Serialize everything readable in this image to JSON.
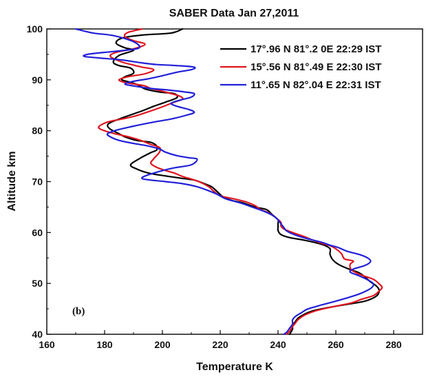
{
  "chart_data": {
    "type": "line",
    "title": "SABER Data  Jan 27,2011",
    "xlabel": "Temperature K",
    "ylabel": "Altitude km",
    "xlim": [
      160,
      290
    ],
    "ylim": [
      40,
      100
    ],
    "xticks": [
      160,
      180,
      200,
      220,
      240,
      260,
      280
    ],
    "yticks": [
      40,
      50,
      60,
      70,
      80,
      90,
      100
    ],
    "panel_label": "(b)",
    "legend_position": "top-right",
    "grid": false,
    "series": [
      {
        "name": "17°.96 N 81°.2 0E  22:29 IST",
        "color": "#000000",
        "points": [
          [
            207,
            100
          ],
          [
            203,
            99.2
          ],
          [
            193,
            98.8
          ],
          [
            186,
            98.2
          ],
          [
            184,
            97.2
          ],
          [
            187,
            96.3
          ],
          [
            190,
            95.8
          ],
          [
            185,
            94.8
          ],
          [
            183,
            93.5
          ],
          [
            185,
            92.8
          ],
          [
            189,
            92.3
          ],
          [
            190,
            91.3
          ],
          [
            187,
            90.6
          ],
          [
            186,
            90
          ],
          [
            189,
            89.5
          ],
          [
            192,
            88.9
          ],
          [
            194,
            88.2
          ],
          [
            199,
            87.6
          ],
          [
            204,
            87.3
          ],
          [
            205,
            86.5
          ],
          [
            201,
            85.6
          ],
          [
            197,
            84.8
          ],
          [
            193,
            83.9
          ],
          [
            186,
            82.5
          ],
          [
            182,
            81.6
          ],
          [
            181,
            81
          ],
          [
            182,
            80.3
          ],
          [
            185,
            79.4
          ],
          [
            187,
            78.8
          ],
          [
            191,
            78.1
          ],
          [
            196,
            77.7
          ],
          [
            198,
            77
          ],
          [
            198,
            76.2
          ],
          [
            196,
            75.7
          ],
          [
            192,
            74.5
          ],
          [
            189,
            73.3
          ],
          [
            191,
            72.5
          ],
          [
            195,
            71.7
          ],
          [
            200,
            71.2
          ],
          [
            206,
            70.7
          ],
          [
            211,
            70.3
          ],
          [
            214,
            69.7
          ],
          [
            217,
            69
          ],
          [
            219,
            68
          ],
          [
            221,
            67
          ],
          [
            224,
            66.3
          ],
          [
            228,
            65.8
          ],
          [
            232,
            65
          ],
          [
            236,
            64.5
          ],
          [
            238,
            63.5
          ],
          [
            240,
            62.5
          ],
          [
            240,
            61.8
          ],
          [
            240,
            61
          ],
          [
            240,
            60.4
          ],
          [
            241,
            59.6
          ],
          [
            244,
            59
          ],
          [
            249,
            58.5
          ],
          [
            253,
            58
          ],
          [
            256,
            57.5
          ],
          [
            258,
            56.8
          ],
          [
            258,
            55.7
          ],
          [
            259,
            54.6
          ],
          [
            261,
            53.7
          ],
          [
            265,
            52.7
          ],
          [
            268,
            52.1
          ],
          [
            270,
            51.3
          ],
          [
            272,
            50.3
          ],
          [
            274,
            49.5
          ],
          [
            275,
            48.6
          ],
          [
            274,
            47.5
          ],
          [
            270,
            46.5
          ],
          [
            263,
            45.8
          ],
          [
            257,
            45.2
          ],
          [
            252,
            44.6
          ],
          [
            249,
            43.9
          ],
          [
            247,
            43.2
          ],
          [
            246,
            42.5
          ],
          [
            245,
            41.7
          ],
          [
            245,
            41
          ],
          [
            244,
            40
          ]
        ]
      },
      {
        "name": "15°.56 N 81°.49 E 22:30 IST",
        "color": "#e0141e",
        "points": [
          [
            193,
            100
          ],
          [
            188,
            99.3
          ],
          [
            187,
            98.5
          ],
          [
            190,
            97.7
          ],
          [
            194,
            97
          ],
          [
            190,
            96.1
          ],
          [
            184,
            95.4
          ],
          [
            182,
            94.6
          ],
          [
            186,
            93.5
          ],
          [
            190,
            92.9
          ],
          [
            193,
            92.5
          ],
          [
            197,
            92
          ],
          [
            194,
            91.2
          ],
          [
            188,
            90.6
          ],
          [
            185,
            90
          ],
          [
            187,
            89.5
          ],
          [
            191,
            89.1
          ],
          [
            194,
            88.8
          ],
          [
            196,
            88.3
          ],
          [
            199,
            87.9
          ],
          [
            203,
            87.3
          ],
          [
            206,
            86.8
          ],
          [
            207,
            86.2
          ],
          [
            204,
            85.6
          ],
          [
            200,
            84.7
          ],
          [
            195,
            83.7
          ],
          [
            190,
            82.8
          ],
          [
            186,
            82.3
          ],
          [
            181,
            81.7
          ],
          [
            178,
            80.8
          ],
          [
            179,
            80.2
          ],
          [
            183,
            79.5
          ],
          [
            189,
            78.7
          ],
          [
            193,
            78
          ],
          [
            196,
            77.3
          ],
          [
            199,
            76.7
          ],
          [
            199,
            75.8
          ],
          [
            197,
            74.5
          ],
          [
            196,
            73.6
          ],
          [
            198,
            72.8
          ],
          [
            201,
            72.2
          ],
          [
            204,
            71.7
          ],
          [
            207,
            71
          ],
          [
            210,
            70.5
          ],
          [
            213,
            69.9
          ],
          [
            216,
            69
          ],
          [
            218,
            68
          ],
          [
            220,
            67.2
          ],
          [
            224,
            66.7
          ],
          [
            229,
            66
          ],
          [
            232,
            65.3
          ],
          [
            234,
            64.5
          ],
          [
            237,
            63.8
          ],
          [
            239,
            63
          ],
          [
            241,
            62
          ],
          [
            241,
            61.3
          ],
          [
            242,
            60.7
          ],
          [
            245,
            60
          ],
          [
            249,
            59.2
          ],
          [
            252,
            58.5
          ],
          [
            255,
            57.9
          ],
          [
            258,
            57.4
          ],
          [
            260,
            56.8
          ],
          [
            262,
            55.8
          ],
          [
            263,
            54.8
          ],
          [
            266,
            54.4
          ],
          [
            265,
            53.8
          ],
          [
            265,
            53
          ],
          [
            266,
            52.4
          ],
          [
            269,
            51.6
          ],
          [
            273,
            50.8
          ],
          [
            275,
            49.9
          ],
          [
            276,
            49.2
          ],
          [
            275,
            48.5
          ],
          [
            273,
            47.6
          ],
          [
            269,
            46.9
          ],
          [
            265,
            46.1
          ],
          [
            258,
            45.3
          ],
          [
            253,
            44.6
          ],
          [
            249,
            43.7
          ],
          [
            247,
            42.9
          ],
          [
            246,
            42.2
          ],
          [
            245,
            41.5
          ],
          [
            244,
            40.6
          ],
          [
            243,
            40
          ]
        ]
      },
      {
        "name": "11°.65 N 82°.04 E 22:31 IST",
        "color": "#2020d8",
        "points": [
          [
            170,
            100
          ],
          [
            176,
            99.2
          ],
          [
            183,
            98.7
          ],
          [
            190,
            97.5
          ],
          [
            192,
            96.3
          ],
          [
            187,
            95.8
          ],
          [
            180,
            95.4
          ],
          [
            174,
            95
          ],
          [
            173,
            94.6
          ],
          [
            178,
            94.3
          ],
          [
            186,
            93.9
          ],
          [
            192,
            93.4
          ],
          [
            198,
            93
          ],
          [
            205,
            92.8
          ],
          [
            211,
            92.5
          ],
          [
            210,
            92
          ],
          [
            205,
            91.5
          ],
          [
            200,
            90.8
          ],
          [
            195,
            90.2
          ],
          [
            190,
            89.7
          ],
          [
            187,
            89.2
          ],
          [
            190,
            88.8
          ],
          [
            196,
            88.3
          ],
          [
            202,
            88
          ],
          [
            208,
            87.6
          ],
          [
            211,
            87.3
          ],
          [
            210,
            86.6
          ],
          [
            206,
            86
          ],
          [
            203,
            85.4
          ],
          [
            205,
            84.8
          ],
          [
            209,
            84.2
          ],
          [
            211,
            83.6
          ],
          [
            208,
            83
          ],
          [
            203,
            82.3
          ],
          [
            196,
            81.6
          ],
          [
            190,
            80.9
          ],
          [
            184,
            80.1
          ],
          [
            181,
            79.4
          ],
          [
            182,
            78.8
          ],
          [
            185,
            78.1
          ],
          [
            190,
            77.5
          ],
          [
            195,
            77
          ],
          [
            199,
            76.4
          ],
          [
            201,
            75.8
          ],
          [
            205,
            75.1
          ],
          [
            209,
            74.7
          ],
          [
            212,
            74.4
          ],
          [
            210,
            73.3
          ],
          [
            204,
            72.7
          ],
          [
            199,
            72
          ],
          [
            194,
            71.1
          ],
          [
            193,
            70.6
          ],
          [
            196,
            70.3
          ],
          [
            201,
            70
          ],
          [
            207,
            69.6
          ],
          [
            212,
            69
          ],
          [
            216,
            68.2
          ],
          [
            219,
            67.5
          ],
          [
            222,
            66.6
          ],
          [
            227,
            65.8
          ],
          [
            231,
            65
          ],
          [
            235,
            64.2
          ],
          [
            238,
            63.4
          ],
          [
            240,
            62.5
          ],
          [
            241,
            61.7
          ],
          [
            242,
            61
          ],
          [
            243,
            60.3
          ],
          [
            246,
            59.5
          ],
          [
            250,
            58.8
          ],
          [
            255,
            58.1
          ],
          [
            258,
            57.5
          ],
          [
            261,
            57
          ],
          [
            264,
            56.3
          ],
          [
            268,
            55.7
          ],
          [
            271,
            55
          ],
          [
            272,
            54.3
          ],
          [
            270,
            53.5
          ],
          [
            266,
            52.8
          ],
          [
            265,
            52.2
          ],
          [
            268,
            51.5
          ],
          [
            271,
            50.7
          ],
          [
            273,
            49.9
          ],
          [
            272,
            49
          ],
          [
            268,
            47.9
          ],
          [
            263,
            47
          ],
          [
            258,
            46.2
          ],
          [
            254,
            45.6
          ],
          [
            250,
            44.9
          ],
          [
            248,
            44.2
          ],
          [
            246,
            43.5
          ],
          [
            245,
            42.8
          ],
          [
            245,
            42
          ],
          [
            244,
            41.2
          ],
          [
            243,
            40.4
          ],
          [
            242,
            40
          ]
        ]
      }
    ]
  }
}
